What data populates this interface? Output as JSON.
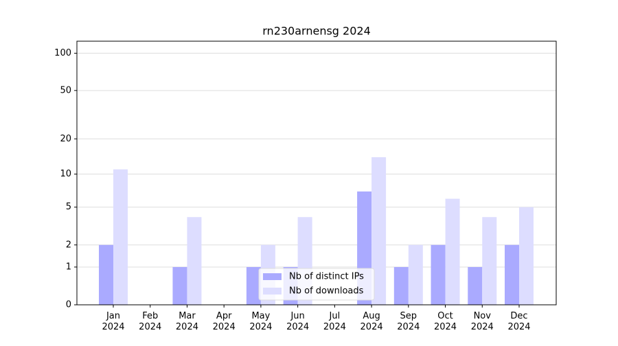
{
  "chart_data": {
    "type": "bar",
    "title": "rn230arnensg 2024",
    "categories": [
      "Jan 2024",
      "Feb 2024",
      "Mar 2024",
      "Apr 2024",
      "May 2024",
      "Jun 2024",
      "Jul 2024",
      "Aug 2024",
      "Sep 2024",
      "Oct 2024",
      "Nov 2024",
      "Dec 2024"
    ],
    "series": [
      {
        "name": "Nb of distinct IPs",
        "color": "#aaaaff",
        "values": [
          2,
          0,
          1,
          0,
          1,
          1,
          0,
          7,
          1,
          2,
          1,
          2
        ]
      },
      {
        "name": "Nb of downloads",
        "color": "#ddddff",
        "values": [
          11,
          0,
          4,
          0,
          2,
          4,
          0,
          14,
          2,
          6,
          4,
          5
        ]
      }
    ],
    "ylim": [
      0,
      125
    ],
    "yticks": [
      0,
      1,
      2,
      5,
      10,
      20,
      50,
      100
    ],
    "yscale": "symlog",
    "grid": true,
    "legend": "lower center"
  }
}
